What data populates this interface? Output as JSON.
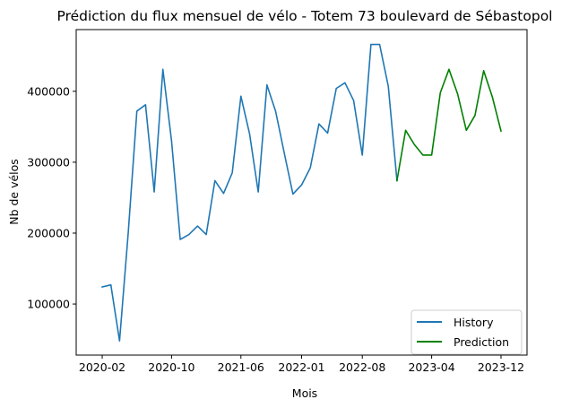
{
  "chart_data": {
    "type": "line",
    "title": "Prédiction du flux mensuel de vélo - Totem 73 boulevard de Sébastopol",
    "xlabel": "Mois",
    "ylabel": "Nb de vélos",
    "x_tick_labels": [
      "2020-02",
      "2020-10",
      "2021-06",
      "2022-01",
      "2022-08",
      "2023-04",
      "2023-12"
    ],
    "y_tick_labels": [
      "100000",
      "200000",
      "300000",
      "400000"
    ],
    "y_ticks": [
      100000,
      200000,
      300000,
      400000
    ],
    "xlim": [
      "2019-11",
      "2024-03"
    ],
    "ylim": [
      28000,
      487000
    ],
    "grid": false,
    "legend_position": "lower right",
    "colors": {
      "History": "#1f77b4",
      "Prediction": "#008000"
    },
    "series": [
      {
        "name": "History",
        "color": "#1f77b4",
        "points": [
          [
            "2020-02",
            124000
          ],
          [
            "2020-03",
            127000
          ],
          [
            "2020-04",
            48000
          ],
          [
            "2020-05",
            200000
          ],
          [
            "2020-06",
            372000
          ],
          [
            "2020-07",
            381000
          ],
          [
            "2020-08",
            258000
          ],
          [
            "2020-09",
            431000
          ],
          [
            "2020-10",
            330000
          ],
          [
            "2020-11",
            191000
          ],
          [
            "2020-12",
            198000
          ],
          [
            "2021-01",
            210000
          ],
          [
            "2021-02",
            198000
          ],
          [
            "2021-03",
            274000
          ],
          [
            "2021-04",
            256000
          ],
          [
            "2021-05",
            285000
          ],
          [
            "2021-06",
            393000
          ],
          [
            "2021-07",
            340000
          ],
          [
            "2021-08",
            258000
          ],
          [
            "2021-09",
            409000
          ],
          [
            "2021-10",
            372000
          ],
          [
            "2021-11",
            313000
          ],
          [
            "2021-12",
            255000
          ],
          [
            "2022-01",
            268000
          ],
          [
            "2022-02",
            292000
          ],
          [
            "2022-03",
            354000
          ],
          [
            "2022-04",
            341000
          ],
          [
            "2022-05",
            404000
          ],
          [
            "2022-06",
            412000
          ],
          [
            "2022-07",
            387000
          ],
          [
            "2022-08",
            310000
          ],
          [
            "2022-09",
            466000
          ],
          [
            "2022-10",
            466000
          ],
          [
            "2022-11",
            407000
          ],
          [
            "2022-12",
            274000
          ]
        ]
      },
      {
        "name": "Prediction",
        "color": "#008000",
        "points": [
          [
            "2022-12",
            274000
          ],
          [
            "2023-01",
            345000
          ],
          [
            "2023-02",
            325000
          ],
          [
            "2023-03",
            310000
          ],
          [
            "2023-04",
            310000
          ],
          [
            "2023-05",
            398000
          ],
          [
            "2023-06",
            431000
          ],
          [
            "2023-07",
            396000
          ],
          [
            "2023-08",
            345000
          ],
          [
            "2023-09",
            366000
          ],
          [
            "2023-10",
            429000
          ],
          [
            "2023-11",
            392000
          ],
          [
            "2023-12",
            344000
          ]
        ]
      }
    ]
  }
}
